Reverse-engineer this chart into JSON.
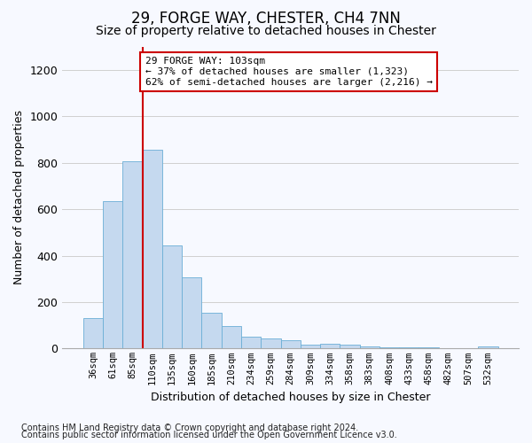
{
  "title1": "29, FORGE WAY, CHESTER, CH4 7NN",
  "title2": "Size of property relative to detached houses in Chester",
  "xlabel": "Distribution of detached houses by size in Chester",
  "ylabel": "Number of detached properties",
  "categories": [
    "36sqm",
    "61sqm",
    "85sqm",
    "110sqm",
    "135sqm",
    "160sqm",
    "185sqm",
    "210sqm",
    "234sqm",
    "259sqm",
    "284sqm",
    "309sqm",
    "334sqm",
    "358sqm",
    "383sqm",
    "408sqm",
    "433sqm",
    "458sqm",
    "482sqm",
    "507sqm",
    "532sqm"
  ],
  "values": [
    130,
    635,
    805,
    855,
    445,
    305,
    155,
    95,
    50,
    45,
    35,
    15,
    20,
    15,
    10,
    5,
    5,
    5,
    3,
    3,
    10
  ],
  "bar_color": "#c5d9ef",
  "bar_edgecolor": "#6baed6",
  "vline_x_index": 3,
  "vline_color": "#cc0000",
  "ylim": [
    0,
    1300
  ],
  "yticks": [
    0,
    200,
    400,
    600,
    800,
    1000,
    1200
  ],
  "annotation_text": "29 FORGE WAY: 103sqm\n← 37% of detached houses are smaller (1,323)\n62% of semi-detached houses are larger (2,216) →",
  "annotation_box_facecolor": "#ffffff",
  "annotation_box_edgecolor": "#cc0000",
  "footer1": "Contains HM Land Registry data © Crown copyright and database right 2024.",
  "footer2": "Contains public sector information licensed under the Open Government Licence v3.0.",
  "background_color": "#f7f9ff",
  "grid_color": "#d0d0d0",
  "title1_fontsize": 12,
  "title2_fontsize": 10,
  "annotation_fontsize": 8,
  "footer_fontsize": 7,
  "ylabel_fontsize": 9,
  "xlabel_fontsize": 9,
  "tick_fontsize": 7.5
}
